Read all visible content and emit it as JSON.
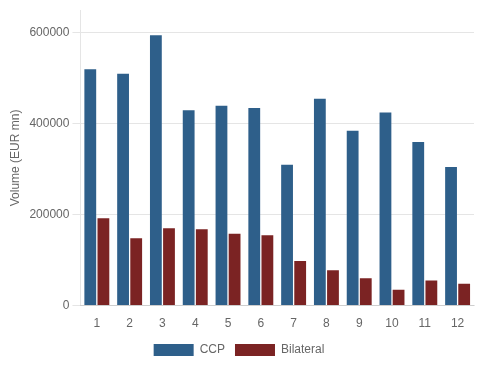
{
  "chart_data": {
    "type": "bar",
    "categories": [
      "1",
      "2",
      "3",
      "4",
      "5",
      "6",
      "7",
      "8",
      "9",
      "10",
      "11",
      "12"
    ],
    "series": [
      {
        "name": "CCP",
        "color": "#2e5f8a",
        "values": [
          520000,
          510000,
          595000,
          430000,
          440000,
          435000,
          310000,
          455000,
          385000,
          425000,
          360000,
          305000
        ]
      },
      {
        "name": "Bilateral",
        "color": "#7b2323",
        "values": [
          192000,
          148000,
          170000,
          168000,
          158000,
          155000,
          98000,
          78000,
          60000,
          35000,
          55000,
          48000
        ]
      }
    ],
    "ylabel": "Volume (EUR mn)",
    "ylim": [
      0,
      650000
    ],
    "yticks": [
      0,
      200000,
      400000,
      600000
    ],
    "grid": true,
    "legend": "bottom"
  }
}
